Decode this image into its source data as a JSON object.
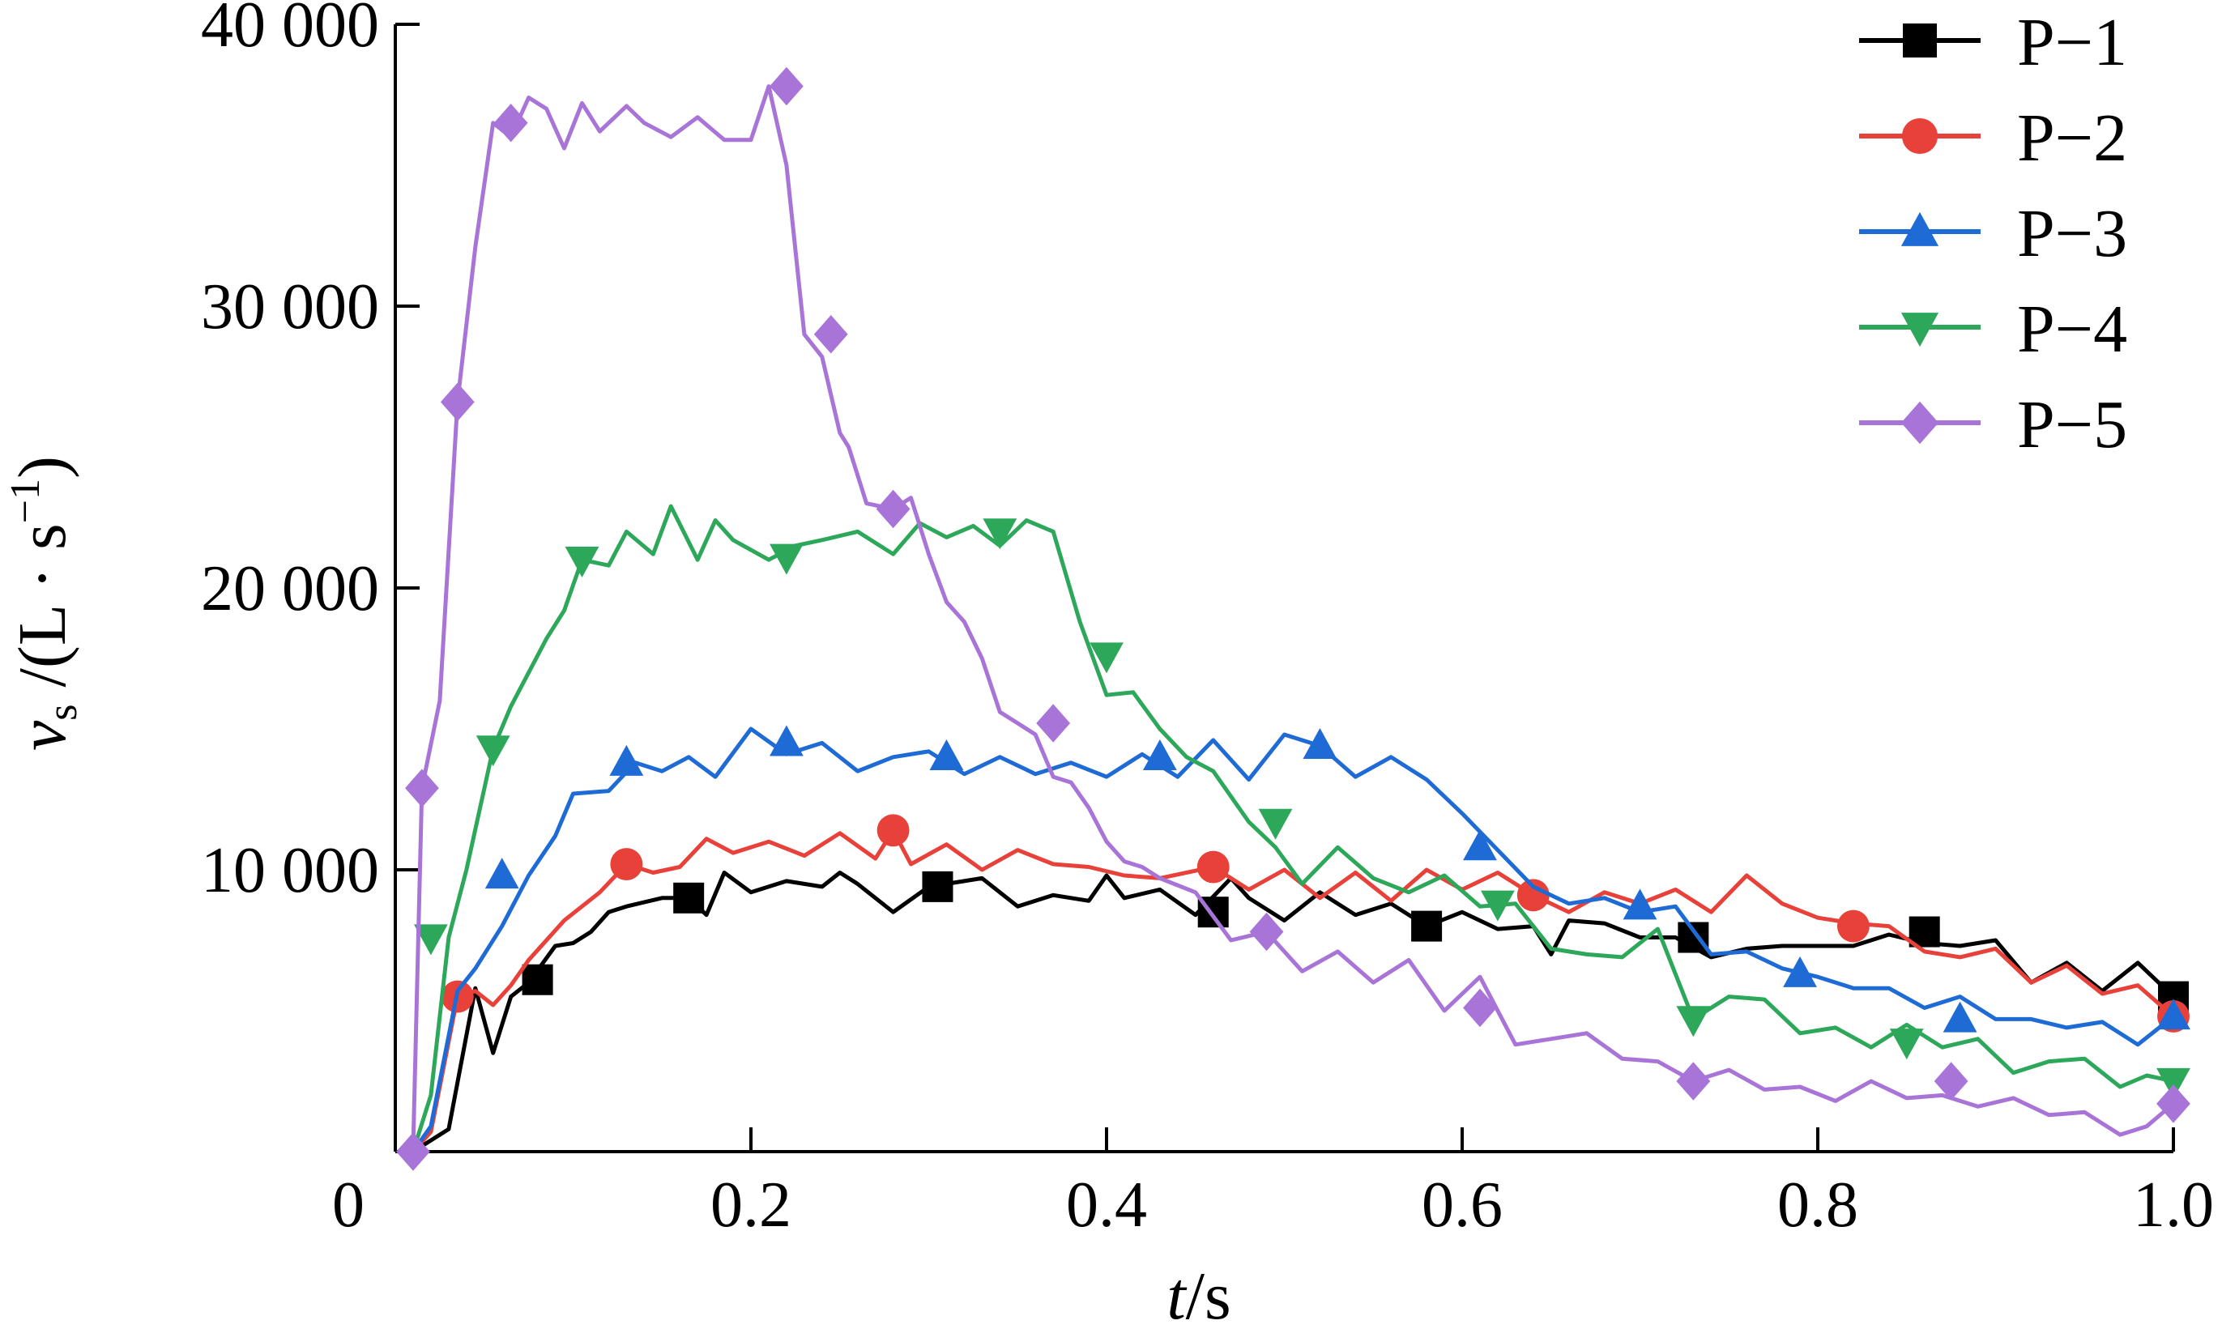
{
  "chart_data": {
    "type": "line",
    "xlabel_italic": "t",
    "xlabel_unit": "/s",
    "ylabel_var": "v",
    "ylabel_sub": "s",
    "ylabel_unit": " /(L · s",
    "ylabel_exp": "−1",
    "ylabel_close": ")",
    "xlim": [
      0,
      1.0
    ],
    "ylim": [
      0,
      40000
    ],
    "xticks": [
      0,
      0.2,
      0.4,
      0.6,
      0.8,
      1.0
    ],
    "xtick_labels": [
      "0",
      "0.2",
      "0.4",
      "0.6",
      "0.8",
      "1.0"
    ],
    "yticks": [
      10000,
      20000,
      30000,
      40000
    ],
    "ytick_labels": [
      "10 000",
      "20 000",
      "30 000",
      "40 000"
    ],
    "grid": false,
    "legend_position": "top-right",
    "series": [
      {
        "name": "P−1",
        "color": "#000000",
        "marker": "square",
        "x": [
          0.01,
          0.03,
          0.045,
          0.055,
          0.065,
          0.075,
          0.09,
          0.1,
          0.11,
          0.12,
          0.13,
          0.15,
          0.165,
          0.175,
          0.185,
          0.2,
          0.22,
          0.24,
          0.25,
          0.26,
          0.28,
          0.3,
          0.31,
          0.33,
          0.35,
          0.37,
          0.39,
          0.4,
          0.41,
          0.43,
          0.45,
          0.47,
          0.48,
          0.5,
          0.52,
          0.54,
          0.56,
          0.58,
          0.6,
          0.62,
          0.64,
          0.65,
          0.66,
          0.68,
          0.7,
          0.72,
          0.74,
          0.76,
          0.78,
          0.8,
          0.82,
          0.84,
          0.86,
          0.88,
          0.9,
          0.92,
          0.94,
          0.96,
          0.98,
          1.0
        ],
        "y": [
          0,
          800,
          5800,
          3500,
          5500,
          6000,
          7300,
          7400,
          7800,
          8500,
          8700,
          9000,
          9000,
          8400,
          9900,
          9200,
          9600,
          9400,
          9900,
          9500,
          8500,
          9400,
          9500,
          9700,
          8700,
          9100,
          8900,
          9800,
          9000,
          9300,
          8400,
          9700,
          9000,
          8200,
          9200,
          8400,
          8800,
          8000,
          8500,
          7900,
          8000,
          7000,
          8200,
          8100,
          7600,
          7600,
          6900,
          7200,
          7300,
          7300,
          7300,
          7700,
          7400,
          7300,
          7500,
          6000,
          6700,
          5700,
          6700,
          5500
        ]
      },
      {
        "name": "P−2",
        "color": "#e8413a",
        "marker": "circle",
        "x": [
          0.01,
          0.02,
          0.035,
          0.045,
          0.055,
          0.065,
          0.075,
          0.095,
          0.115,
          0.13,
          0.145,
          0.16,
          0.175,
          0.19,
          0.21,
          0.23,
          0.25,
          0.27,
          0.28,
          0.29,
          0.31,
          0.33,
          0.35,
          0.37,
          0.39,
          0.41,
          0.43,
          0.46,
          0.48,
          0.5,
          0.52,
          0.54,
          0.56,
          0.58,
          0.6,
          0.62,
          0.64,
          0.66,
          0.68,
          0.7,
          0.72,
          0.74,
          0.76,
          0.78,
          0.8,
          0.82,
          0.84,
          0.86,
          0.88,
          0.9,
          0.92,
          0.94,
          0.96,
          0.98,
          1.0
        ],
        "y": [
          0,
          700,
          5500,
          5700,
          5200,
          5900,
          6800,
          8200,
          9200,
          10200,
          9900,
          10100,
          11100,
          10600,
          11000,
          10500,
          11300,
          10400,
          11400,
          10200,
          10900,
          10000,
          10700,
          10200,
          10100,
          9800,
          9700,
          10100,
          9300,
          10000,
          9000,
          9900,
          8900,
          10000,
          9300,
          9900,
          9100,
          8500,
          9200,
          8800,
          9300,
          8500,
          9800,
          8800,
          8300,
          8100,
          8000,
          7100,
          6900,
          7200,
          6000,
          6600,
          5600,
          5900,
          4800
        ]
      },
      {
        "name": "P−3",
        "color": "#1f6bd6",
        "marker": "triangle-up",
        "x": [
          0.01,
          0.02,
          0.035,
          0.045,
          0.06,
          0.075,
          0.09,
          0.1,
          0.12,
          0.135,
          0.15,
          0.165,
          0.18,
          0.2,
          0.22,
          0.24,
          0.26,
          0.28,
          0.3,
          0.32,
          0.34,
          0.36,
          0.38,
          0.4,
          0.42,
          0.44,
          0.46,
          0.48,
          0.5,
          0.52,
          0.54,
          0.56,
          0.58,
          0.6,
          0.62,
          0.64,
          0.66,
          0.68,
          0.7,
          0.72,
          0.74,
          0.76,
          0.78,
          0.8,
          0.82,
          0.84,
          0.86,
          0.88,
          0.9,
          0.92,
          0.94,
          0.96,
          0.98,
          1.0
        ],
        "y": [
          0,
          900,
          5700,
          6500,
          8000,
          9800,
          11200,
          12700,
          12800,
          13800,
          13500,
          14000,
          13300,
          15000,
          14100,
          14500,
          13500,
          14000,
          14200,
          13400,
          14000,
          13400,
          13800,
          13300,
          14100,
          13300,
          14600,
          13200,
          14800,
          14400,
          13300,
          14000,
          13200,
          12000,
          10700,
          9400,
          8800,
          9000,
          8500,
          8700,
          7000,
          7100,
          6500,
          6200,
          5800,
          5800,
          5100,
          5500,
          4700,
          4700,
          4400,
          4600,
          3800,
          4800
        ]
      },
      {
        "name": "P−4",
        "color": "#2da85a",
        "marker": "triangle-down",
        "x": [
          0.01,
          0.02,
          0.03,
          0.04,
          0.055,
          0.065,
          0.085,
          0.095,
          0.105,
          0.12,
          0.13,
          0.145,
          0.155,
          0.17,
          0.18,
          0.19,
          0.21,
          0.225,
          0.24,
          0.26,
          0.28,
          0.295,
          0.31,
          0.325,
          0.34,
          0.355,
          0.37,
          0.385,
          0.4,
          0.415,
          0.43,
          0.445,
          0.46,
          0.48,
          0.495,
          0.51,
          0.53,
          0.55,
          0.57,
          0.59,
          0.61,
          0.63,
          0.65,
          0.67,
          0.69,
          0.71,
          0.73,
          0.75,
          0.77,
          0.79,
          0.81,
          0.83,
          0.85,
          0.87,
          0.89,
          0.91,
          0.93,
          0.95,
          0.97,
          0.985,
          1.0
        ],
        "y": [
          0,
          2000,
          7600,
          10000,
          14300,
          15800,
          18200,
          19200,
          21000,
          20800,
          22000,
          21200,
          22900,
          21000,
          22400,
          21700,
          21000,
          21500,
          21700,
          22000,
          21200,
          22300,
          21800,
          22200,
          21500,
          22400,
          22000,
          18800,
          16200,
          16300,
          15000,
          14000,
          13500,
          11700,
          10800,
          9500,
          10800,
          9700,
          9200,
          9800,
          8700,
          8800,
          7200,
          7000,
          6900,
          7900,
          4700,
          5500,
          5400,
          4200,
          4400,
          3700,
          4500,
          3700,
          4000,
          2800,
          3200,
          3300,
          2300,
          2700,
          2500
        ]
      },
      {
        "name": "P−5",
        "color": "#a874d8",
        "marker": "diamond",
        "x": [
          0.01,
          0.015,
          0.025,
          0.035,
          0.045,
          0.055,
          0.065,
          0.075,
          0.085,
          0.095,
          0.105,
          0.115,
          0.13,
          0.14,
          0.155,
          0.17,
          0.185,
          0.2,
          0.21,
          0.22,
          0.23,
          0.24,
          0.25,
          0.255,
          0.265,
          0.28,
          0.29,
          0.3,
          0.31,
          0.32,
          0.33,
          0.34,
          0.35,
          0.36,
          0.37,
          0.38,
          0.39,
          0.4,
          0.41,
          0.42,
          0.43,
          0.45,
          0.47,
          0.49,
          0.51,
          0.53,
          0.55,
          0.57,
          0.59,
          0.61,
          0.63,
          0.65,
          0.67,
          0.69,
          0.71,
          0.73,
          0.75,
          0.77,
          0.79,
          0.81,
          0.83,
          0.85,
          0.87,
          0.89,
          0.91,
          0.93,
          0.95,
          0.97,
          0.985,
          1.0
        ],
        "y": [
          0,
          12900,
          16000,
          26600,
          32100,
          36500,
          36000,
          37400,
          37000,
          35600,
          37200,
          36200,
          37100,
          36500,
          36000,
          36700,
          35900,
          35900,
          37800,
          35000,
          29000,
          28200,
          25500,
          25000,
          23000,
          22800,
          23200,
          21200,
          19500,
          18800,
          17500,
          15600,
          15200,
          14800,
          13300,
          13100,
          12200,
          11000,
          10300,
          10100,
          9700,
          9200,
          7500,
          7800,
          6400,
          7100,
          6000,
          6800,
          5000,
          6200,
          3800,
          4000,
          4200,
          3300,
          3200,
          2500,
          2900,
          2200,
          2300,
          1800,
          2500,
          1900,
          2000,
          1600,
          1900,
          1300,
          1400,
          600,
          900,
          1700
        ]
      }
    ],
    "markers": {
      "P−1": [
        [
          0.08,
          6100
        ],
        [
          0.165,
          9000
        ],
        [
          0.305,
          9400
        ],
        [
          0.46,
          8500
        ],
        [
          0.58,
          8000
        ],
        [
          0.73,
          7600
        ],
        [
          0.86,
          7800
        ],
        [
          1.0,
          5500
        ]
      ],
      "P−2": [
        [
          0.035,
          5500
        ],
        [
          0.13,
          10200
        ],
        [
          0.28,
          11400
        ],
        [
          0.46,
          10100
        ],
        [
          0.64,
          9100
        ],
        [
          0.82,
          8000
        ],
        [
          1.0,
          4800
        ]
      ],
      "P−3": [
        [
          0.06,
          9800
        ],
        [
          0.13,
          13800
        ],
        [
          0.22,
          14500
        ],
        [
          0.31,
          14000
        ],
        [
          0.43,
          14000
        ],
        [
          0.52,
          14400
        ],
        [
          0.61,
          10800
        ],
        [
          0.7,
          8700
        ],
        [
          0.79,
          6300
        ],
        [
          0.88,
          4700
        ],
        [
          1.0,
          4800
        ]
      ],
      "P−4": [
        [
          0.02,
          7600
        ],
        [
          0.055,
          14300
        ],
        [
          0.105,
          21000
        ],
        [
          0.22,
          21100
        ],
        [
          0.34,
          22000
        ],
        [
          0.4,
          17600
        ],
        [
          0.495,
          11700
        ],
        [
          0.62,
          8800
        ],
        [
          0.73,
          4700
        ],
        [
          0.85,
          3900
        ],
        [
          1.0,
          2500
        ]
      ],
      "P−5": [
        [
          0.01,
          0
        ],
        [
          0.015,
          12900
        ],
        [
          0.035,
          26600
        ],
        [
          0.065,
          36500
        ],
        [
          0.22,
          37800
        ],
        [
          0.245,
          29000
        ],
        [
          0.28,
          22800
        ],
        [
          0.37,
          15200
        ],
        [
          0.49,
          7800
        ],
        [
          0.61,
          5100
        ],
        [
          0.73,
          2500
        ],
        [
          0.875,
          2500
        ],
        [
          1.0,
          1700
        ]
      ]
    }
  }
}
